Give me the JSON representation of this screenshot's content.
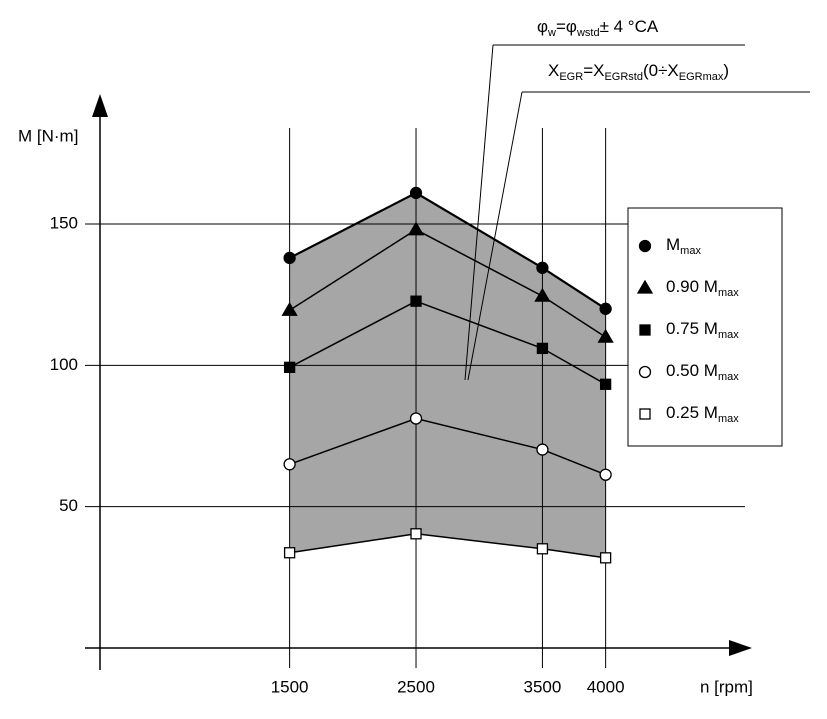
{
  "chart_data": {
    "type": "line",
    "x_label": "n [rpm]",
    "y_label": "M [N·m]",
    "x": [
      1500,
      2500,
      3500,
      4000
    ],
    "xlim": [
      0,
      5150
    ],
    "xticks": [
      1500,
      2500,
      3500,
      4000
    ],
    "ylim": [
      0,
      196
    ],
    "yticks": [
      50,
      100,
      150
    ],
    "grid": true,
    "area_color": "#a6a6a6",
    "series": [
      {
        "name": [
          "M",
          "max"
        ],
        "color": "#000000",
        "marker": "circle",
        "filled": true,
        "values": [
          138,
          161,
          134.5,
          120
        ]
      },
      {
        "name": [
          "0.90 M",
          "max"
        ],
        "color": "#000000",
        "marker": "triangle",
        "filled": true,
        "values": [
          119.5,
          148,
          124.5,
          110
        ]
      },
      {
        "name": [
          "0.75 M",
          "max"
        ],
        "color": "#000000",
        "marker": "square",
        "filled": true,
        "values": [
          99.3,
          122.7,
          106,
          93.3
        ]
      },
      {
        "name": [
          "0.50 M",
          "max"
        ],
        "color": "#000000",
        "marker": "circle",
        "filled": false,
        "values": [
          65,
          81.2,
          70.2,
          61.3
        ]
      },
      {
        "name": [
          "0.25 M",
          "max"
        ],
        "color": "#000000",
        "marker": "square",
        "filled": false,
        "values": [
          33.7,
          40.4,
          35.1,
          31.9
        ]
      }
    ],
    "annotations": [
      [
        "φ",
        "w",
        "=φ",
        "wstd",
        "± 4 °CA"
      ],
      [
        "X",
        "EGR",
        "=X",
        "EGRstd",
        "(0÷X",
        "EGRmax",
        ")"
      ]
    ]
  }
}
